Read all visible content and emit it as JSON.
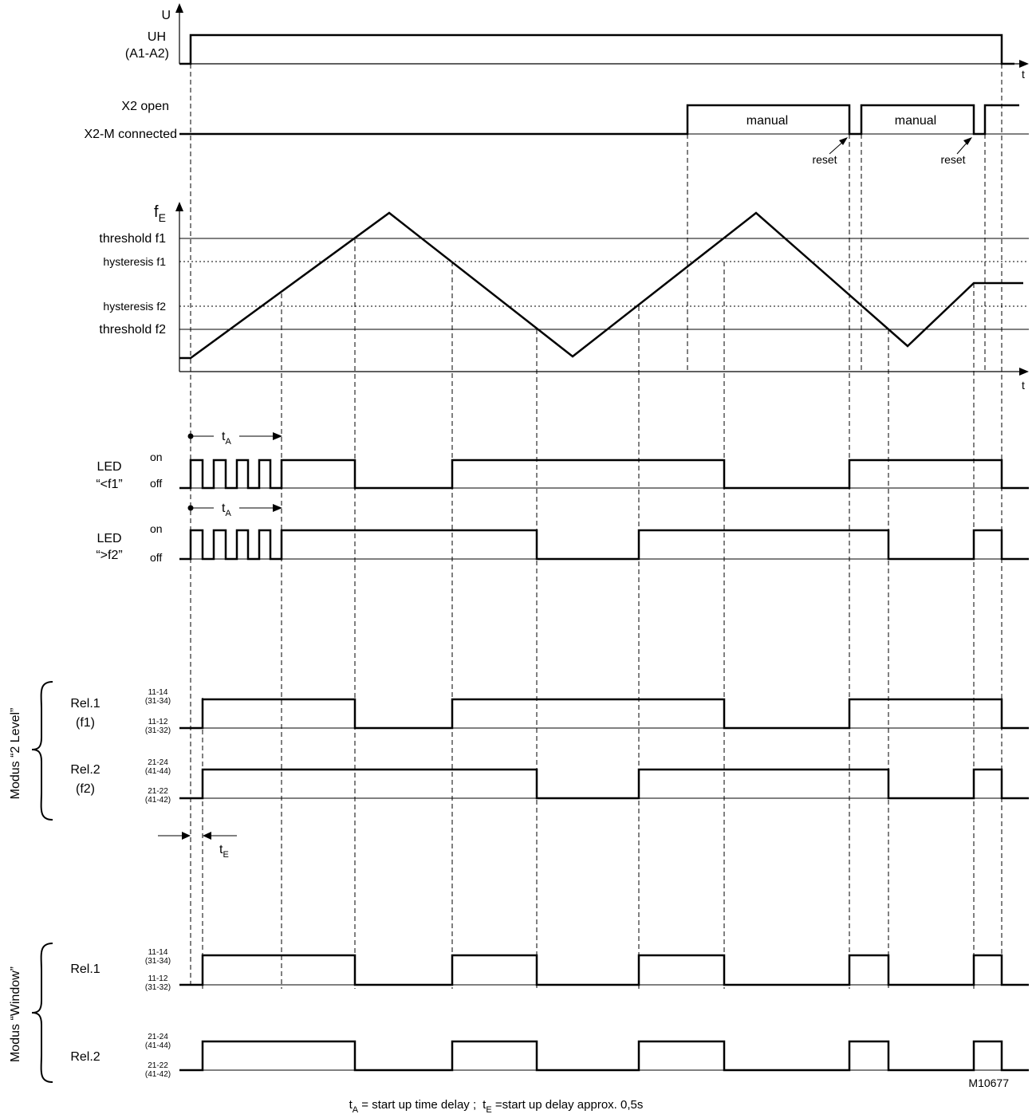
{
  "axes": {
    "voltage": "U",
    "time": "t",
    "freq_main": "f",
    "freq_sub": "E"
  },
  "supply": {
    "label_line1": "UH",
    "label_line2": "(A1-A2)"
  },
  "x2": {
    "open": "X2 open",
    "connected": "X2-M connected",
    "manual_1": "manual",
    "manual_2": "manual",
    "reset_1": "reset",
    "reset_2": "reset"
  },
  "levels": {
    "threshold_f1": "threshold f1",
    "hysteresis_f1": "hysteresis f1",
    "hysteresis_f2": "hysteresis f2",
    "threshold_f2": "threshold f2"
  },
  "led1": {
    "title": "LED",
    "name": "“<f1”",
    "on": "on",
    "off": "off"
  },
  "led2": {
    "title": "LED",
    "name": "“>f2”",
    "on": "on",
    "off": "off"
  },
  "tA": {
    "main": "t",
    "sub": "A"
  },
  "tE": {
    "main": "t",
    "sub": "E"
  },
  "mode_2level": {
    "label": "Modus “2 Level”",
    "rel1_name": "Rel.1",
    "rel1_param": "(f1)",
    "rel2_name": "Rel.2",
    "rel2_param": "(f2)"
  },
  "mode_window": {
    "label": "Modus “Window”",
    "rel1_name": "Rel.1",
    "rel2_name": "Rel.2"
  },
  "contacts": {
    "r1_on_a": "11-14",
    "r1_on_b": "(31-34)",
    "r1_off_a": "11-12",
    "r1_off_b": "(31-32)",
    "r2_on_a": "21-24",
    "r2_on_b": "(41-44)",
    "r2_off_a": "21-22",
    "r2_off_b": "(41-42)"
  },
  "drawing_id": "M10677",
  "footnote": {
    "tA_main": "t",
    "tA_sub": "A",
    "tA_def": " = start up time delay ;",
    "tE_main": "t",
    "tE_sub": "E",
    "tE_def": " =start up delay approx. 0,5s"
  }
}
